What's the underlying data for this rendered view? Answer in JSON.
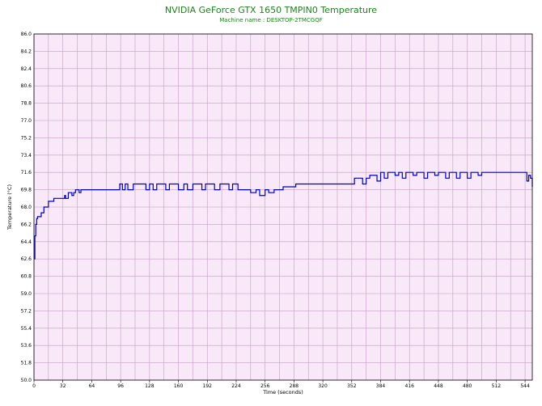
{
  "chart_data": {
    "type": "line",
    "title": "NVIDIA GeForce GTX 1650 TMPIN0 Temperature",
    "subtitle": "Machine name : DESKTOP-2TMCGQF",
    "xlabel": "Time (seconds)",
    "ylabel": "Temperature (°C)",
    "xlim": [
      0,
      552
    ],
    "ylim": [
      50.0,
      86.0
    ],
    "xticks": [
      "0",
      "32",
      "64",
      "96",
      "128",
      "160",
      "192",
      "224",
      "256",
      "288",
      "320",
      "352",
      "384",
      "416",
      "448",
      "480",
      "512",
      "544"
    ],
    "yticks": [
      "50.0",
      "51.8",
      "53.6",
      "55.4",
      "57.2",
      "59.0",
      "60.8",
      "62.6",
      "64.4",
      "66.2",
      "68.0",
      "69.8",
      "71.6",
      "73.4",
      "75.2",
      "77.0",
      "78.8",
      "80.6",
      "82.4",
      "84.2",
      "86.0"
    ],
    "grid": true,
    "background_color": "#f8e8f8",
    "grid_color": "#c0a0c0",
    "line_color": "#0000c0",
    "series": [
      {
        "name": "",
        "x": [
          0,
          1,
          2,
          3,
          4,
          5,
          8,
          11,
          15,
          16,
          20,
          22,
          26,
          30,
          34,
          35,
          38,
          40,
          42,
          44,
          46,
          48,
          50,
          52,
          55,
          60,
          70,
          80,
          90,
          95,
          98,
          101,
          104,
          110,
          118,
          124,
          128,
          132,
          136,
          140,
          146,
          150,
          156,
          160,
          166,
          170,
          176,
          180,
          186,
          190,
          196,
          200,
          206,
          210,
          216,
          220,
          226,
          230,
          236,
          240,
          246,
          250,
          256,
          260,
          266,
          270,
          276,
          280,
          290,
          300,
          312,
          320,
          330,
          340,
          350,
          355,
          360,
          364,
          368,
          372,
          376,
          380,
          384,
          388,
          392,
          396,
          400,
          404,
          408,
          412,
          416,
          420,
          424,
          428,
          432,
          436,
          440,
          444,
          448,
          452,
          456,
          460,
          464,
          468,
          472,
          476,
          480,
          484,
          488,
          492,
          496,
          500,
          504,
          510,
          516,
          520,
          524,
          528,
          532,
          536,
          540,
          544,
          546,
          548,
          550,
          552
        ],
        "values": [
          62.6,
          65.0,
          66.2,
          66.8,
          67.0,
          67.0,
          67.4,
          68.0,
          68.0,
          68.6,
          68.6,
          68.9,
          68.9,
          68.9,
          69.2,
          68.9,
          69.5,
          69.5,
          69.2,
          69.5,
          69.8,
          69.8,
          69.5,
          69.8,
          69.8,
          69.8,
          69.8,
          69.8,
          69.8,
          70.4,
          69.8,
          70.4,
          69.8,
          70.4,
          70.4,
          69.8,
          70.4,
          69.8,
          70.4,
          70.4,
          69.8,
          70.4,
          70.4,
          69.8,
          70.4,
          69.8,
          70.4,
          70.4,
          69.8,
          70.4,
          70.4,
          69.8,
          70.4,
          70.4,
          69.8,
          70.4,
          69.8,
          69.8,
          69.8,
          69.5,
          69.8,
          69.2,
          69.8,
          69.5,
          69.8,
          69.8,
          70.1,
          70.1,
          70.4,
          70.4,
          70.4,
          70.4,
          70.4,
          70.4,
          70.4,
          71.0,
          71.0,
          70.4,
          71.0,
          71.3,
          71.3,
          70.7,
          71.6,
          71.0,
          71.6,
          71.6,
          71.3,
          71.6,
          71.0,
          71.6,
          71.6,
          71.3,
          71.6,
          71.6,
          71.0,
          71.6,
          71.6,
          71.3,
          71.6,
          71.6,
          71.0,
          71.6,
          71.6,
          71.0,
          71.6,
          71.6,
          71.0,
          71.6,
          71.6,
          71.3,
          71.6,
          71.6,
          71.6,
          71.6,
          71.6,
          71.6,
          71.6,
          71.6,
          71.6,
          71.6,
          71.6,
          71.6,
          70.7,
          71.3,
          71.0,
          70.1
        ]
      }
    ]
  }
}
